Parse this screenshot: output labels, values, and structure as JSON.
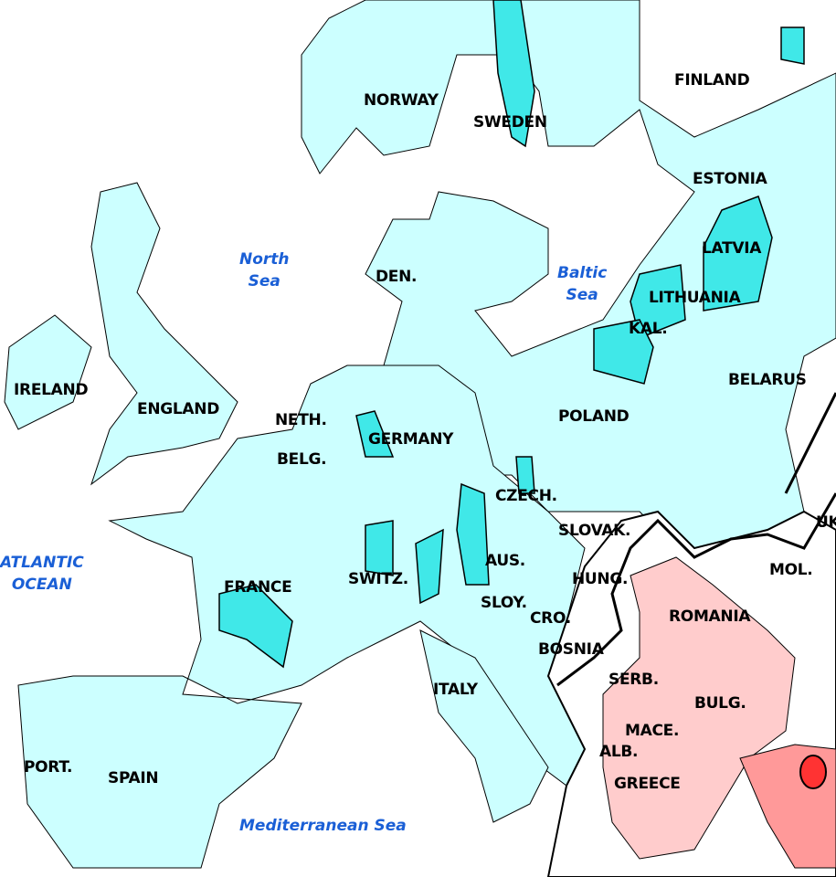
{
  "colors": {
    "water": "#ffffff",
    "light_cyan": "#ccffff",
    "cyan": "#40e8e8",
    "light_pink": "#ffcccc",
    "pink": "#ff9999",
    "red": "#ff3333",
    "border": "#000000",
    "sea_label": "#1a5fd6"
  },
  "seas": [
    {
      "id": "north-sea",
      "text": "North\nSea"
    },
    {
      "id": "baltic-sea",
      "text": "Baltic\nSea"
    },
    {
      "id": "atlantic-ocean",
      "text": "ATLANTIC\nOCEAN"
    },
    {
      "id": "mediterranean-sea",
      "text": "Mediterranean Sea"
    }
  ],
  "countries": [
    {
      "id": "norway",
      "text": "NORWAY"
    },
    {
      "id": "sweden",
      "text": "SWEDEN"
    },
    {
      "id": "finland",
      "text": "FINLAND"
    },
    {
      "id": "estonia",
      "text": "ESTONIA"
    },
    {
      "id": "latvia",
      "text": "LATVIA"
    },
    {
      "id": "lithuania",
      "text": "LITHUANIA"
    },
    {
      "id": "kal",
      "text": "KAL."
    },
    {
      "id": "den",
      "text": "DEN."
    },
    {
      "id": "ireland",
      "text": "IRELAND"
    },
    {
      "id": "england",
      "text": "ENGLAND"
    },
    {
      "id": "neth",
      "text": "NETH."
    },
    {
      "id": "belg",
      "text": "BELG."
    },
    {
      "id": "germany",
      "text": "GERMANY"
    },
    {
      "id": "poland",
      "text": "POLAND"
    },
    {
      "id": "belarus",
      "text": "BELARUS"
    },
    {
      "id": "czech",
      "text": "CZECH."
    },
    {
      "id": "slovak",
      "text": "SLOVAK."
    },
    {
      "id": "uk",
      "text": "UK"
    },
    {
      "id": "mol",
      "text": "MOL."
    },
    {
      "id": "hung",
      "text": "HUNG."
    },
    {
      "id": "aus",
      "text": "AUS."
    },
    {
      "id": "switz",
      "text": "SWITZ."
    },
    {
      "id": "france",
      "text": "FRANCE"
    },
    {
      "id": "sloy",
      "text": "SLOY."
    },
    {
      "id": "cro",
      "text": "CRO."
    },
    {
      "id": "romania",
      "text": "ROMANIA"
    },
    {
      "id": "bosnia",
      "text": "BOSNIA"
    },
    {
      "id": "serb",
      "text": "SERB."
    },
    {
      "id": "italy",
      "text": "ITALY"
    },
    {
      "id": "bulg",
      "text": "BULG."
    },
    {
      "id": "mace",
      "text": "MACE."
    },
    {
      "id": "alb",
      "text": "ALB."
    },
    {
      "id": "greece",
      "text": "GREECE"
    },
    {
      "id": "port",
      "text": "PORT."
    },
    {
      "id": "spain",
      "text": "SPAIN"
    }
  ]
}
